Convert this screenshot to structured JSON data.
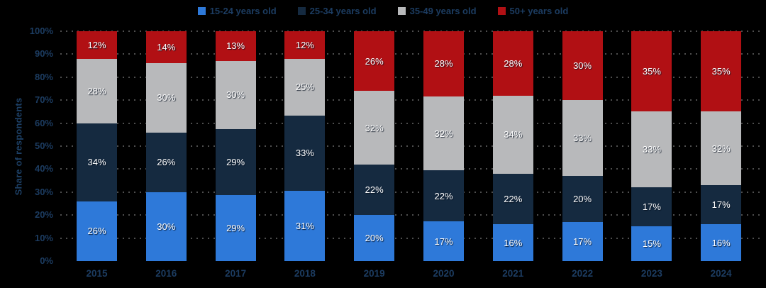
{
  "chart_data": {
    "type": "bar",
    "stacked": true,
    "title": "",
    "ylabel": "Share of respondents",
    "xlabel": "",
    "ylim": [
      0,
      100
    ],
    "y_tick_step": 10,
    "y_tick_suffix": "%",
    "value_label_suffix": "%",
    "grid": "dotted-horizontal",
    "legend_position": "top",
    "categories": [
      "2015",
      "2016",
      "2017",
      "2018",
      "2019",
      "2020",
      "2021",
      "2022",
      "2023",
      "2024"
    ],
    "series": [
      {
        "name": "15-24 years old",
        "color": "#2e79d9",
        "values": [
          26,
          30,
          29,
          31,
          20,
          17,
          16,
          17,
          15,
          16
        ]
      },
      {
        "name": "25-34 years old",
        "color": "#152a40",
        "values": [
          34,
          26,
          29,
          33,
          22,
          22,
          22,
          20,
          17,
          17
        ]
      },
      {
        "name": "35-49 years old",
        "color": "#b8b9bb",
        "values": [
          28,
          30,
          30,
          25,
          32,
          32,
          34,
          33,
          33,
          32
        ]
      },
      {
        "name": "50+ years old",
        "color": "#b11014",
        "values": [
          12,
          14,
          13,
          12,
          26,
          28,
          28,
          30,
          35,
          35
        ]
      }
    ]
  },
  "colors": {
    "background": "#000000",
    "axis_text": "#1c3c61",
    "grid_dots": "#4e4e4e",
    "value_label_text": "#ffffff"
  }
}
